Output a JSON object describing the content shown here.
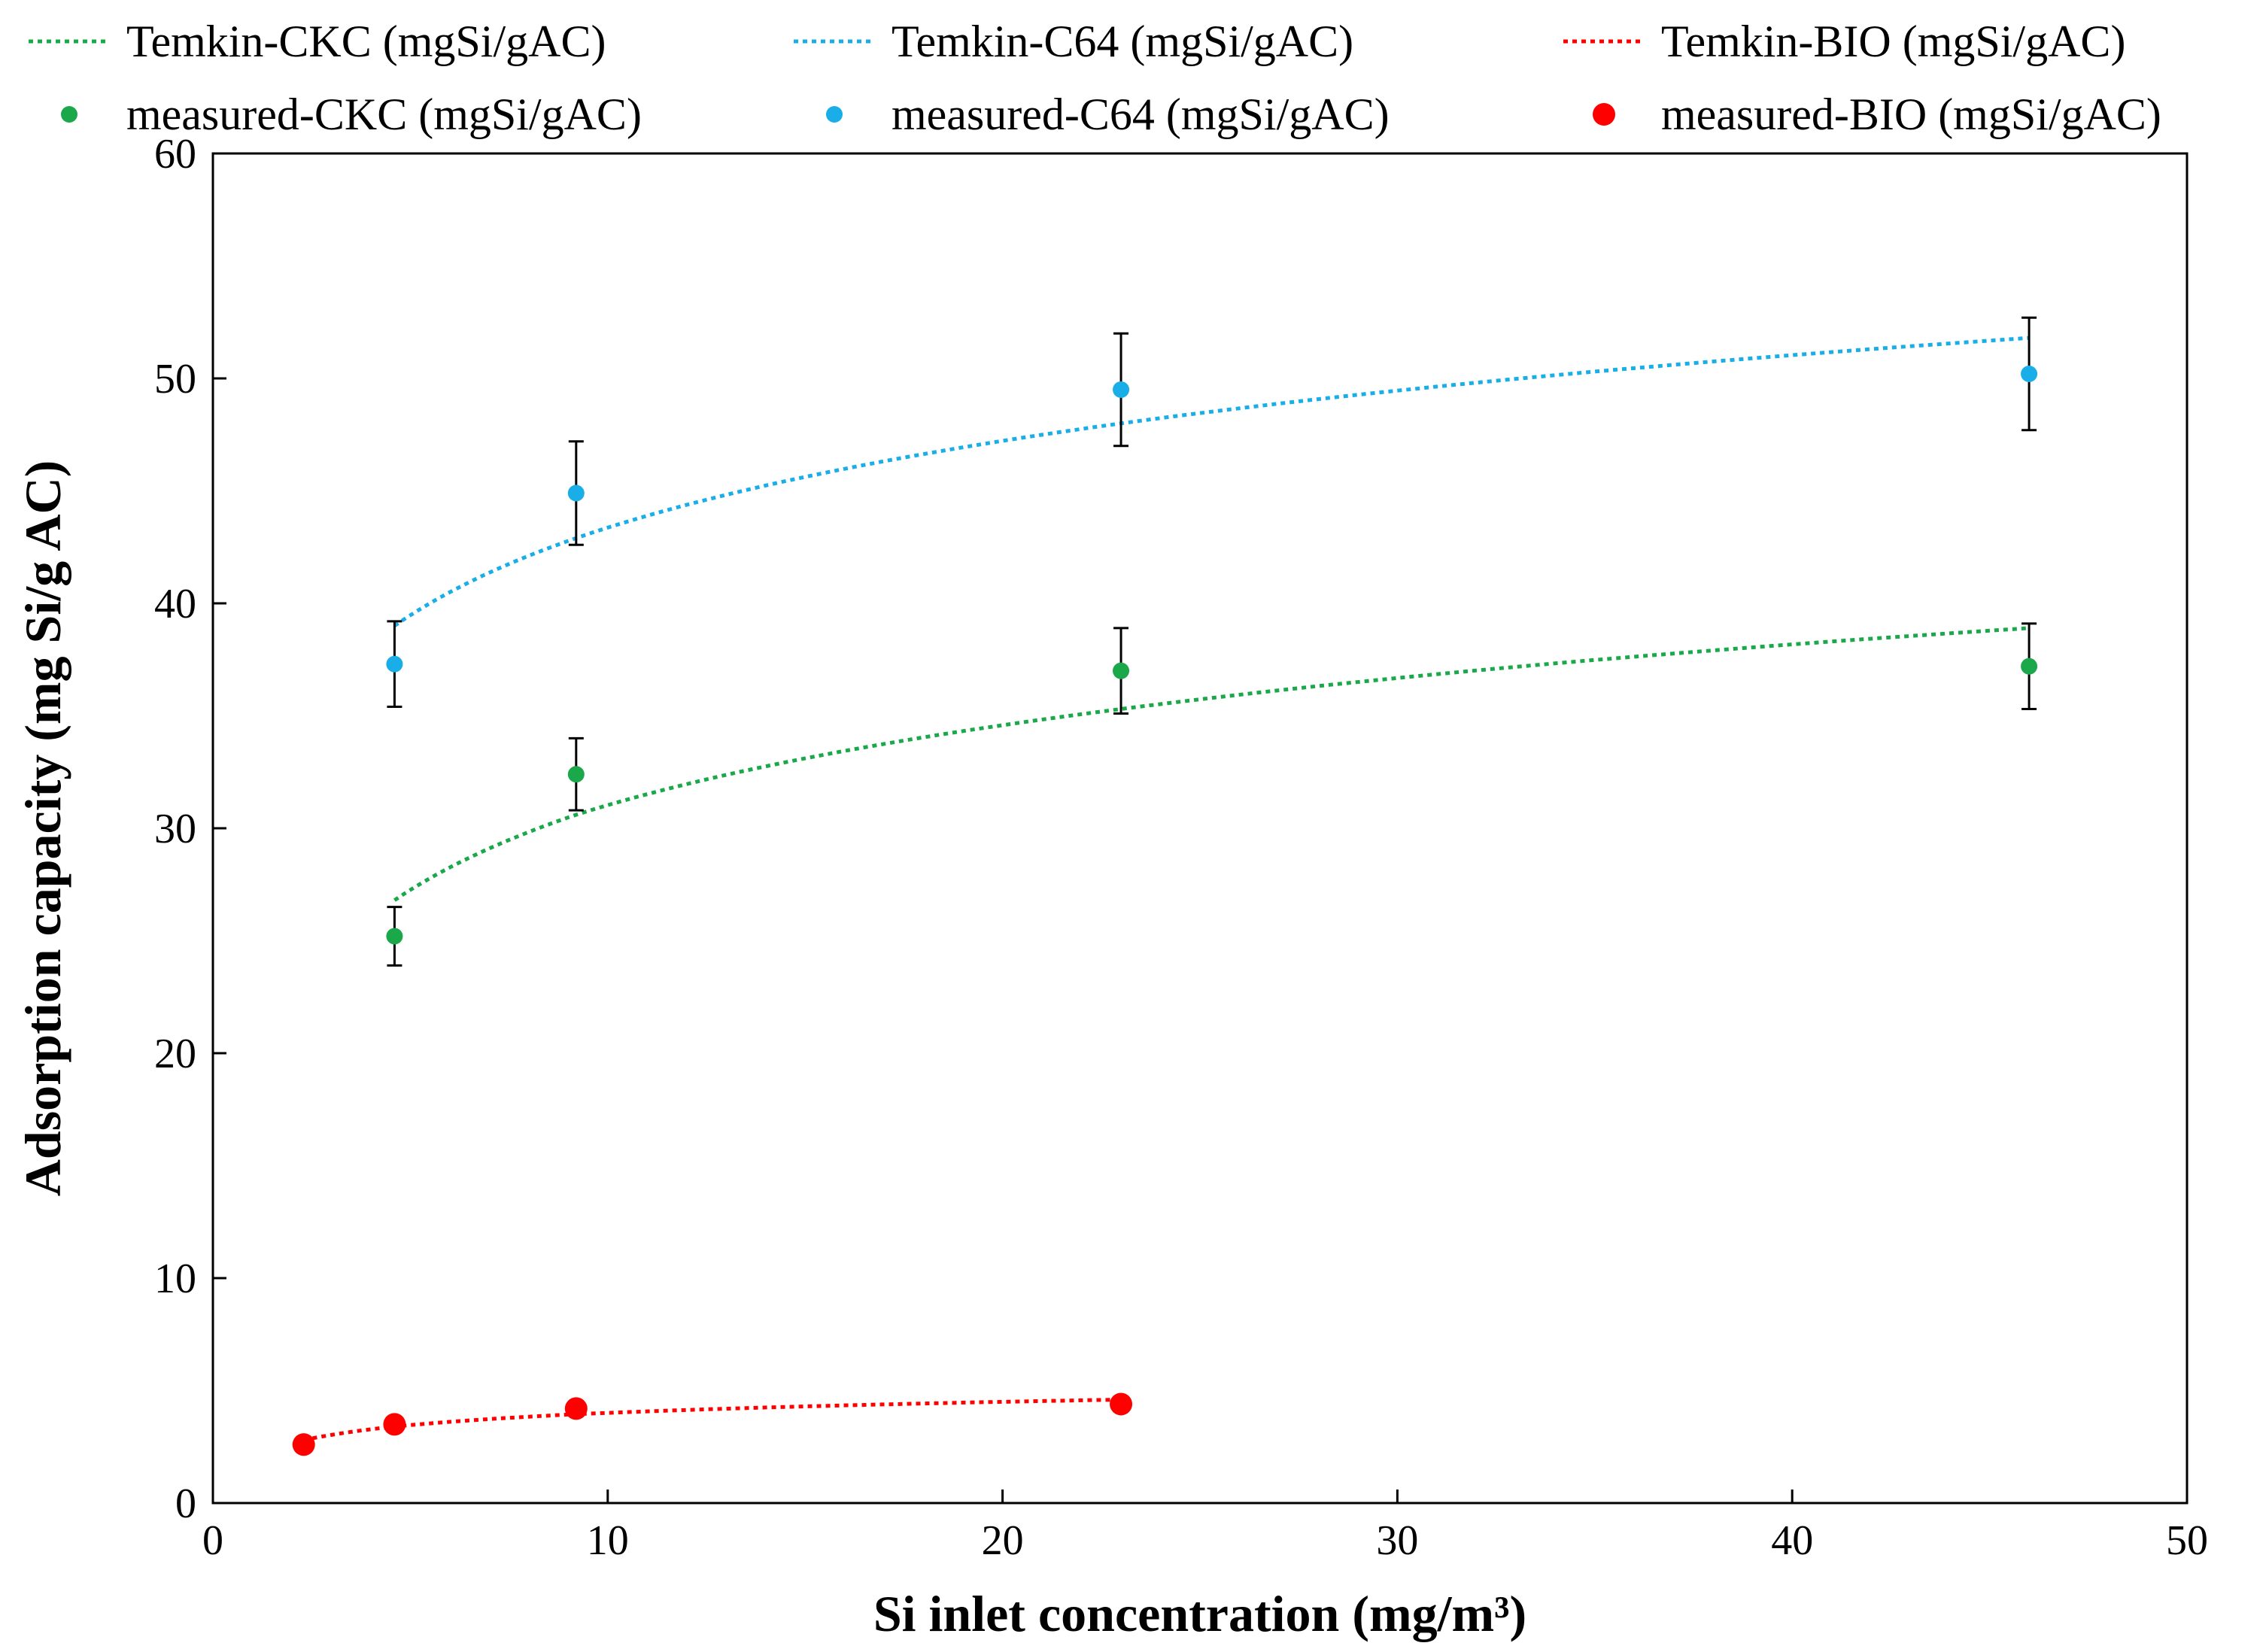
{
  "chart_data": {
    "type": "scatter",
    "title": "",
    "xlabel": "Si inlet concentration (mg/m³)",
    "ylabel": "Adsorption capacity (mg Si/g AC)",
    "xlim": [
      0,
      50
    ],
    "ylim": [
      0,
      60
    ],
    "x_ticks": [
      0,
      10,
      20,
      30,
      40,
      50
    ],
    "y_ticks": [
      0,
      10,
      20,
      30,
      40,
      50,
      60
    ],
    "x_tick_labels": [
      "0",
      "10",
      "20",
      "30",
      "40",
      "50"
    ],
    "y_tick_labels": [
      "0",
      "10",
      "20",
      "30",
      "40",
      "50",
      "60"
    ],
    "grid": false,
    "legend_position": "top",
    "series": [
      {
        "name": "Temkin-CKC (mgSi/gAC)",
        "kind": "fit-line",
        "style": "dotted",
        "color": "#1aa84b",
        "x": [
          4.6,
          9.2,
          23,
          46
        ],
        "values": [
          26.8,
          30.6,
          35.3,
          38.9
        ]
      },
      {
        "name": "Temkin-C64 (mgSi/gAC)",
        "kind": "fit-line",
        "style": "dotted",
        "color": "#19aee8",
        "x": [
          4.6,
          9.2,
          23,
          46
        ],
        "values": [
          39.0,
          42.9,
          48.0,
          51.8
        ]
      },
      {
        "name": "Temkin-BIO (mgSi/gAC)",
        "kind": "fit-line",
        "style": "dotted",
        "color": "#ff0000",
        "x": [
          2.3,
          4.6,
          9.2,
          23
        ],
        "values": [
          2.8,
          3.4,
          3.95,
          4.6
        ]
      },
      {
        "name": "measured-CKC (mgSi/gAC)",
        "kind": "points",
        "color": "#1aa84b",
        "x": [
          4.6,
          9.2,
          23,
          46
        ],
        "values": [
          25.2,
          32.4,
          37.0,
          37.2
        ],
        "error": [
          1.3,
          1.6,
          1.9,
          1.9
        ]
      },
      {
        "name": "measured-C64 (mgSi/gAC)",
        "kind": "points",
        "color": "#19aee8",
        "x": [
          4.6,
          9.2,
          23,
          46
        ],
        "values": [
          37.3,
          44.9,
          49.5,
          50.2
        ],
        "error": [
          1.9,
          2.3,
          2.5,
          2.5
        ]
      },
      {
        "name": "measured-BIO (mgSi/gAC)",
        "kind": "points",
        "size": "large",
        "color": "#ff0000",
        "x": [
          2.3,
          4.6,
          9.2,
          23
        ],
        "values": [
          2.6,
          3.5,
          4.2,
          4.4
        ]
      }
    ]
  }
}
